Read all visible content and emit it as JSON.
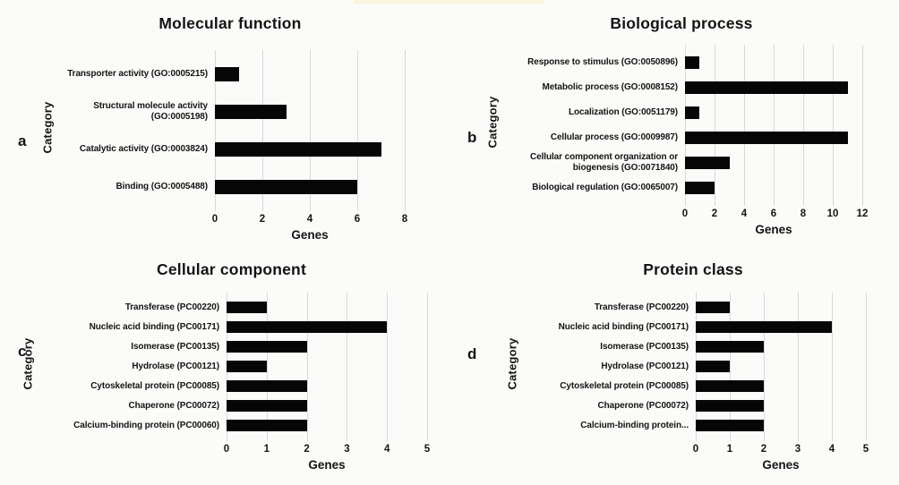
{
  "figure": {
    "description": "Four-panel gene ontology bar chart figure",
    "panel_letters": [
      "a",
      "b",
      "c",
      "d"
    ]
  },
  "colors": {
    "bar": "#060606",
    "gridline": "#d6dadb",
    "background": "#fbfbf9",
    "text": "#141414"
  },
  "chart_data": [
    {
      "type": "bar",
      "orientation": "horizontal",
      "panel_label": "a",
      "title": "Molecular function",
      "xlabel": "Genes",
      "ylabel": "Category",
      "categories": [
        "Transporter activity (GO:0005215)",
        "Structural molecule activity (GO:0005198)",
        "Catalytic activity (GO:0003824)",
        "Binding (GO:0005488)"
      ],
      "values": [
        1,
        3,
        7,
        6
      ],
      "xlim": [
        0,
        8
      ],
      "xticks": [
        0,
        2,
        4,
        6,
        8
      ],
      "grid": "vertical",
      "legend": false
    },
    {
      "type": "bar",
      "orientation": "horizontal",
      "panel_label": "b",
      "title": "Biological process",
      "xlabel": "Genes",
      "ylabel": "Category",
      "categories": [
        "Response to stimulus (GO:0050896)",
        "Metabolic process (GO:0008152)",
        "Localization (GO:0051179)",
        "Cellular process (GO:0009987)",
        "Cellular component organization or biogenesis (GO:0071840)",
        "Biological regulation (GO:0065007)"
      ],
      "values": [
        1,
        11,
        1,
        11,
        3,
        2
      ],
      "xlim": [
        0,
        12
      ],
      "xticks": [
        0,
        2,
        4,
        6,
        8,
        10,
        12
      ],
      "grid": "vertical",
      "legend": false
    },
    {
      "type": "bar",
      "orientation": "horizontal",
      "panel_label": "c",
      "title": "Cellular component",
      "xlabel": "Genes",
      "ylabel": "Category",
      "categories": [
        "Transferase (PC00220)",
        "Nucleic acid binding (PC00171)",
        "Isomerase (PC00135)",
        "Hydrolase (PC00121)",
        "Cytoskeletal protein (PC00085)",
        "Chaperone (PC00072)",
        "Calcium-binding protein (PC00060)"
      ],
      "values": [
        1,
        4,
        2,
        1,
        2,
        2,
        2
      ],
      "xlim": [
        0,
        5
      ],
      "xticks": [
        0,
        1,
        2,
        3,
        4,
        5
      ],
      "grid": "vertical",
      "legend": false
    },
    {
      "type": "bar",
      "orientation": "horizontal",
      "panel_label": "d",
      "title": "Protein class",
      "xlabel": "Genes",
      "ylabel": "Category",
      "categories": [
        "Transferase (PC00220)",
        "Nucleic acid binding (PC00171)",
        "Isomerase (PC00135)",
        "Hydrolase (PC00121)",
        "Cytoskeletal protein (PC00085)",
        "Chaperone (PC00072)",
        "Calcium-binding protein..."
      ],
      "values": [
        1,
        4,
        2,
        1,
        2,
        2,
        2
      ],
      "xlim": [
        0,
        5
      ],
      "xticks": [
        0,
        1,
        2,
        3,
        4,
        5
      ],
      "grid": "vertical",
      "legend": false
    }
  ]
}
